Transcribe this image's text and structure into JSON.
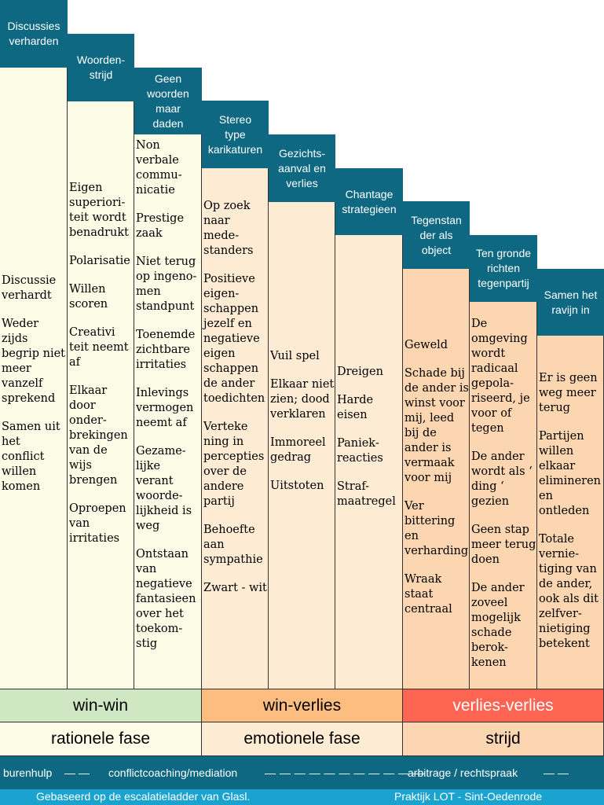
{
  "colors": {
    "header": "#0e6882",
    "stage_group_1": "#fcfbe6",
    "stage_group_2": "#fdebd4",
    "stage_group_3": "#fbd6b0",
    "win_win": "#cfe7c2",
    "win_verlies": "#fdbd80",
    "verlies_verlies": "#fd6452",
    "help_bar": "#0e6882",
    "footer_bar": "#1aa3cf"
  },
  "stages": [
    {
      "title": "Discussies\nverharden",
      "items": [
        "Discussie\nverhardt",
        "Weder\nzijds\nbegrip niet\nmeer\nvanzelf\nsprekend",
        "Samen uit\nhet\nconflict\nwillen\nkomen"
      ]
    },
    {
      "title": "Woorden-\nstrijd",
      "items": [
        "Eigen\nsuperiori-\nteit wordt\nbenadrukt",
        "Polarisatie",
        "Willen\nscoren",
        "Creativi\nteit neemt\naf",
        "Elkaar\ndoor\nonder-\nbrekingen\nvan de\nwijs\nbrengen",
        "Oproepen\nvan\nirritaties"
      ]
    },
    {
      "title": "Geen\nwoorden\nmaar\ndaden",
      "items": [
        "Non\nverbale\ncommu-\nnicatie",
        "Prestige\nzaak",
        "Niet terug\nop ingeno-\nmen\nstandpunt",
        "Toenemde\nzichtbare\nirritaties",
        "Inlevings\nvermogen\nneemt af",
        "Gezame-\nlijke\nverant\nwoorde-\nlijkheid is\nweg",
        "Ontstaan\nvan\nnegatieve\nfantasieen\nover het\ntoekom-\nstig"
      ]
    },
    {
      "title": "Stereo\ntype\nkarikaturen",
      "items": [
        "Op zoek\nnaar\nmede-\nstanders",
        "Positieve\neigen-\nschappen\njezelf en\nnegatieve\neigen\nschappen\nde ander\ntoedichten",
        "Verteke\nning in\npercepties\nover de\nandere\npartij",
        "Behoefte\naan\nsympathie",
        "Zwart - wit"
      ]
    },
    {
      "title": "Gezichts-\naanval en\nverlies",
      "items": [
        "Vuil spel",
        "Elkaar niet\nzien; dood\nverklaren",
        "Immoreel\ngedrag",
        "Uitstoten"
      ]
    },
    {
      "title": "Chantage\nstrategieen",
      "items": [
        "Dreigen",
        "Harde\neisen",
        "Paniek-\nreacties",
        "Straf-\nmaatregel"
      ]
    },
    {
      "title": "Tegenstan\nder als\nobject",
      "items": [
        "Geweld",
        "Schade bij\nde ander is\nwinst voor\nmij, leed\nbij de\nander is\nvermaak\nvoor mij",
        "Ver\nbittering\nen\nverharding",
        "Wraak\nstaat\ncentraal"
      ]
    },
    {
      "title": "Ten gronde\nrichten\ntegenpartij",
      "items": [
        "De\nomgeving\nwordt\nradicaal\ngepola-\nriseerd, je\nvoor of\ntegen",
        "De ander\nwordt als ‘\nding ‘\ngezien",
        "Geen stap\nmeer terug\ndoen",
        "De ander\nzoveel\nmogelijk\nschade\nberok-\nkenen"
      ]
    },
    {
      "title": "Samen het\nravijn in",
      "items": [
        "Er is geen\nweg meer\nterug",
        "Partijen\nwillen\nelkaar\nelimineren\nen\nontleden",
        "Totale\nvernie-\ntiging van\nde ander,\nook als dit\nzelfver-\nnietiging\nbetekent"
      ]
    }
  ],
  "outcomes": [
    "win-win",
    "win-verlies",
    "verlies-verlies"
  ],
  "phases": [
    "rationele fase",
    "emotionele fase",
    "strijd"
  ],
  "help_bar": {
    "burenhulp": "burenhulp",
    "dash1": "— —",
    "mediation": "conflictcoaching/mediation",
    "dash2": "— — — — — — — — — — —",
    "arbitrage": "arbitrage / rechtspraak",
    "dash3": "— —"
  },
  "footer": {
    "left": "Gebaseerd op de escalatieladder van Glasl.",
    "right": "Praktijk LOT - Sint-Oedenrode"
  }
}
